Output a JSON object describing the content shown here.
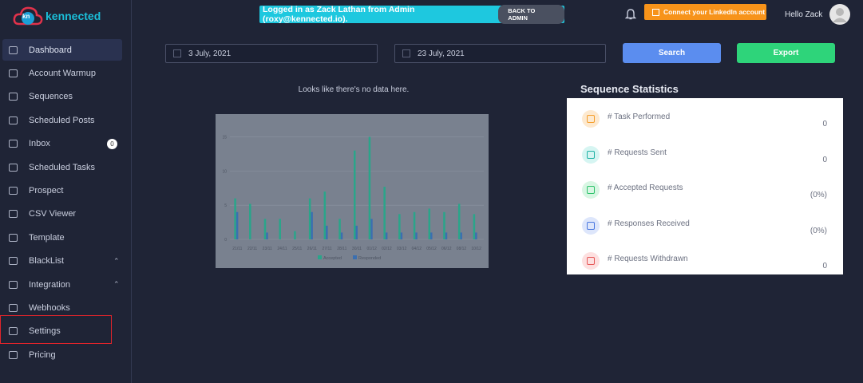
{
  "header": {
    "logo_badge": "kn",
    "logo": "kennected",
    "banner": "Logged in as Zack Lathan from Admin (roxy@kennected.io).",
    "banner_button": "BACK TO ADMIN",
    "linkedin_button": "Connect your LinkedIn account",
    "greeting": "Hello Zack"
  },
  "sidebar": {
    "items": [
      {
        "label": "Dashboard"
      },
      {
        "label": "Account Warmup"
      },
      {
        "label": "Sequences"
      },
      {
        "label": "Scheduled Posts"
      },
      {
        "label": "Inbox",
        "badge": "0"
      },
      {
        "label": "Scheduled Tasks"
      },
      {
        "label": "Prospect"
      },
      {
        "label": "CSV Viewer"
      },
      {
        "label": "Template"
      },
      {
        "label": "BlackList"
      },
      {
        "label": "Integration"
      },
      {
        "label": "Webhooks"
      },
      {
        "label": "Settings"
      },
      {
        "label": "Pricing"
      }
    ]
  },
  "filters": {
    "start_date": "3 July, 2021",
    "end_date": "23 July, 2021",
    "search": "Search",
    "export": "Export"
  },
  "empty_message": "Looks like there's no data here.",
  "placeholder_chart": {
    "type": "bar",
    "categories": [
      "21/11",
      "22/11",
      "23/11",
      "24/11",
      "25/11",
      "26/11",
      "27/11",
      "28/11",
      "30/11",
      "01/12",
      "02/12",
      "03/12",
      "04/12",
      "05/12",
      "06/12",
      "08/12",
      "10/12"
    ],
    "series": [
      {
        "name": "Accepted",
        "color": "#2aa58a",
        "values": [
          6,
          5.2,
          3,
          3,
          1.2,
          6,
          7,
          3,
          13,
          15,
          7.7,
          3.7,
          4,
          4.5,
          4,
          5.2,
          3.7
        ]
      },
      {
        "name": "Responded",
        "color": "#3b6fb0",
        "values": [
          4,
          0,
          1,
          0,
          0,
          4,
          2,
          1,
          2,
          3,
          1,
          1,
          1,
          1,
          1,
          1,
          1
        ]
      }
    ],
    "ylim": [
      0,
      16
    ],
    "yticks": [
      0,
      5,
      10,
      15
    ]
  },
  "statistics": {
    "title": "Sequence Statistics",
    "rows": [
      {
        "label": "# Task Performed",
        "value": "0"
      },
      {
        "label": "# Requests Sent",
        "value": "0"
      },
      {
        "label": "# Accepted Requests",
        "value": "(0%)"
      },
      {
        "label": "# Responses Received",
        "value": "(0%)"
      },
      {
        "label": "# Requests Withdrawn",
        "value": "0"
      }
    ]
  }
}
